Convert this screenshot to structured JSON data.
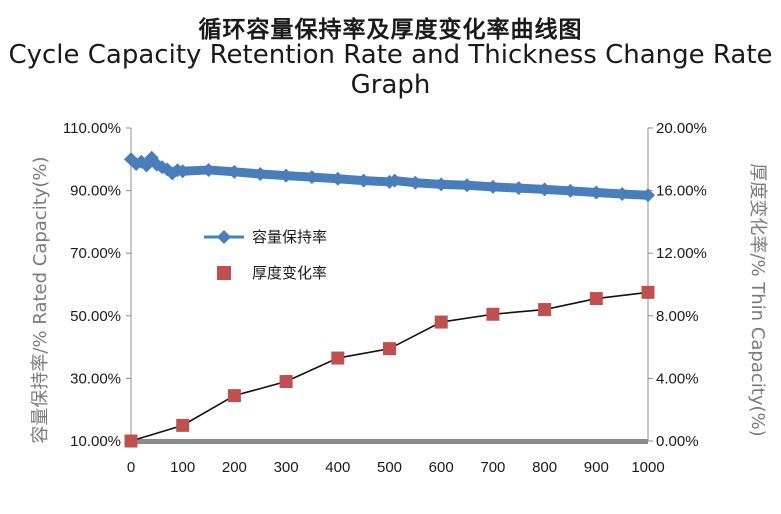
{
  "title_cn": "循环容量保持率及厚度变化率曲线图",
  "title_en": "Cycle Capacity Retention Rate and Thickness Change Rate Graph",
  "chart_data": {
    "type": "line",
    "title": "Cycle Capacity Retention Rate and Thickness Change Rate Graph",
    "xlabel": "",
    "x_ticks": [
      "0",
      "100",
      "200",
      "300",
      "400",
      "500",
      "600",
      "700",
      "800",
      "900",
      "1000"
    ],
    "xlim": [
      0,
      1000
    ],
    "y_left": {
      "label": "容量保持率/% Rated Capacity(%)",
      "ylim": [
        10,
        110
      ],
      "ticks": [
        "10.00%",
        "30.00%",
        "50.00%",
        "70.00%",
        "90.00%",
        "110.00%"
      ]
    },
    "y_right": {
      "label": "厚度变化率/% Thin Capacity(%)",
      "ylim": [
        0,
        20
      ],
      "ticks": [
        "0.00%",
        "4.00%",
        "8.00%",
        "12.00%",
        "16.00%",
        "20.00%"
      ]
    },
    "legend_position": "middle-left",
    "grid": false,
    "series": [
      {
        "name": "容量保持率",
        "axis": "left",
        "color": "#4a7ebb",
        "marker": "diamond",
        "x": [
          0,
          10,
          20,
          30,
          40,
          50,
          60,
          70,
          80,
          90,
          100,
          150,
          200,
          250,
          300,
          350,
          400,
          450,
          500,
          510,
          550,
          600,
          650,
          700,
          750,
          800,
          850,
          900,
          950,
          1000
        ],
        "values": [
          100.0,
          98.5,
          99.2,
          98.0,
          100.5,
          98.3,
          97.5,
          96.8,
          95.5,
          96.5,
          96.2,
          96.6,
          96.0,
          95.3,
          94.8,
          94.3,
          93.8,
          93.2,
          92.8,
          93.2,
          92.5,
          92.0,
          91.7,
          91.2,
          90.8,
          90.4,
          89.9,
          89.4,
          88.9,
          88.5
        ]
      },
      {
        "name": "厚度变化率",
        "axis": "right",
        "color": "#c0504d",
        "marker": "square",
        "x": [
          0,
          100,
          200,
          300,
          400,
          500,
          600,
          700,
          800,
          900,
          1000
        ],
        "values": [
          0.0,
          1.0,
          2.9,
          3.8,
          5.3,
          5.9,
          7.6,
          8.1,
          8.4,
          9.1,
          9.5
        ]
      }
    ]
  }
}
